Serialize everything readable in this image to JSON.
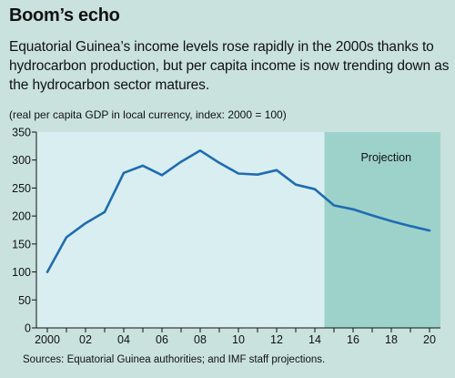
{
  "header": {
    "title": "Boom’s echo",
    "subtitle": "Equatorial Guinea’s income levels rose rapidly in the 2000s thanks to hydrocarbon production, but per capita income is now trending down as the hydrocarbon sector matures.",
    "note": "(real per capita GDP in local currency, index: 2000 = 100)"
  },
  "footer": {
    "source": "Sources: Equatorial Guinea authorities; and IMF staff projections."
  },
  "colors": {
    "background": "#c9e2de",
    "plot_area": "#d9eef0",
    "projection_area": "#9dd2cb",
    "line": "#1f6cb0"
  },
  "chart_data": {
    "type": "line",
    "title": "",
    "xlabel": "",
    "ylabel": "",
    "x": [
      2000,
      2001,
      2002,
      2003,
      2004,
      2005,
      2006,
      2007,
      2008,
      2009,
      2010,
      2011,
      2012,
      2013,
      2014,
      2015,
      2016,
      2017,
      2018,
      2019,
      2020
    ],
    "series": [
      {
        "values": [
          100,
          162,
          187,
          207,
          277,
          290,
          273,
          297,
          317,
          295,
          276,
          274,
          282,
          256,
          248,
          219,
          212,
          201,
          191,
          182,
          174
        ]
      }
    ],
    "xlim": [
      2000,
      2020
    ],
    "ylim": [
      0,
      350
    ],
    "yticks": [
      0,
      50,
      100,
      150,
      200,
      250,
      300,
      350
    ],
    "xtick_labels": [
      "2000",
      "02",
      "04",
      "06",
      "08",
      "10",
      "12",
      "14",
      "16",
      "18",
      "20"
    ],
    "projection": {
      "label": "Projection",
      "start": 2014.5,
      "end": 2020
    },
    "grid": false
  }
}
